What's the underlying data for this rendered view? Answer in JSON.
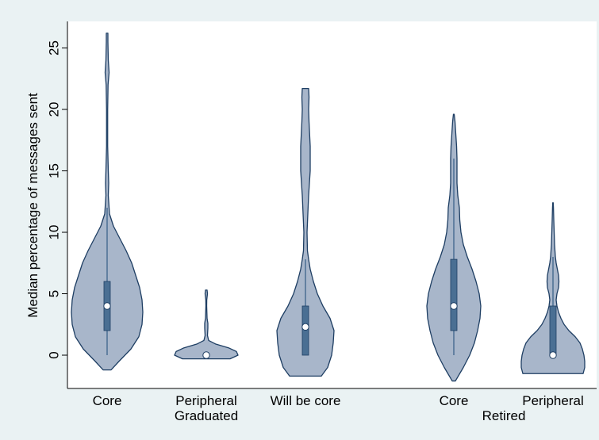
{
  "chart_data": {
    "type": "violin",
    "ylabel": "Median percentage of messages sent",
    "ylim": [
      -2.8,
      27
    ],
    "yticks": [
      0,
      5,
      10,
      15,
      20,
      25
    ],
    "groups": [
      {
        "label": "Graduated",
        "categories": [
          "Core",
          "Peripheral",
          "Will be core"
        ]
      },
      {
        "label": "Retired",
        "categories": [
          "Core",
          "Peripheral"
        ]
      }
    ],
    "colors": {
      "plot_background": "#ffffff",
      "figure_background": "#eaf2f3",
      "violin_fill": "#a8b6ca",
      "violin_stroke": "#1e3e63",
      "box_fill": "#4a6f93"
    },
    "violins": [
      {
        "category": "Core",
        "group": "Graduated",
        "median": 4,
        "q1": 2,
        "q3": 6,
        "whisker_low": 0,
        "whisker_high": 12,
        "min": -1.2,
        "max": 26.2,
        "density": [
          [
            -1.2,
            5
          ],
          [
            -0.5,
            15
          ],
          [
            0.5,
            30
          ],
          [
            1.5,
            40
          ],
          [
            2.5,
            44
          ],
          [
            3.5,
            45
          ],
          [
            4.5,
            44
          ],
          [
            5.5,
            41
          ],
          [
            6.5,
            36
          ],
          [
            7.5,
            31
          ],
          [
            8.5,
            24
          ],
          [
            9.5,
            16
          ],
          [
            10.5,
            8
          ],
          [
            11.5,
            3
          ],
          [
            13,
            1.5
          ],
          [
            14,
            2
          ],
          [
            15,
            1.5
          ],
          [
            17,
            0.7
          ],
          [
            20,
            0.7
          ],
          [
            22,
            1.2
          ],
          [
            23,
            2.5
          ],
          [
            24,
            1.5
          ],
          [
            25.5,
            1
          ],
          [
            26.2,
            1
          ]
        ]
      },
      {
        "category": "Peripheral",
        "group": "Graduated",
        "median": 0,
        "q1": 0,
        "q3": 0,
        "whisker_low": 0,
        "whisker_high": 0,
        "min": -0.3,
        "max": 5.3,
        "density": [
          [
            -0.3,
            30
          ],
          [
            0,
            40
          ],
          [
            0.3,
            38
          ],
          [
            0.6,
            28
          ],
          [
            0.9,
            12
          ],
          [
            1.2,
            3
          ],
          [
            1.6,
            1.5
          ],
          [
            2.2,
            2
          ],
          [
            2.6,
            2
          ],
          [
            3,
            1
          ],
          [
            4,
            0.5
          ],
          [
            4.5,
            0.6
          ],
          [
            5,
            1.5
          ],
          [
            5.3,
            1
          ]
        ]
      },
      {
        "category": "Will be core",
        "group": "Graduated",
        "median": 2.3,
        "q1": 0,
        "q3": 4,
        "whisker_low": 0,
        "whisker_high": 7.8,
        "min": -1.7,
        "max": 21.7,
        "density": [
          [
            -1.7,
            20
          ],
          [
            -1,
            28
          ],
          [
            0,
            33
          ],
          [
            1,
            35
          ],
          [
            2,
            36
          ],
          [
            3,
            31
          ],
          [
            4,
            22
          ],
          [
            5,
            15
          ],
          [
            6,
            10
          ],
          [
            7,
            6
          ],
          [
            7.8,
            4
          ],
          [
            8.5,
            2.5
          ],
          [
            10,
            2
          ],
          [
            11.5,
            3
          ],
          [
            13,
            4
          ],
          [
            15,
            6
          ],
          [
            17,
            6
          ],
          [
            19,
            4.5
          ],
          [
            20,
            4
          ],
          [
            21,
            4.5
          ],
          [
            21.7,
            4
          ]
        ]
      },
      {
        "category": "Core",
        "group": "Retired",
        "median": 4,
        "q1": 2,
        "q3": 7.8,
        "whisker_low": 0,
        "whisker_high": 16,
        "min": -2.1,
        "max": 19.6,
        "density": [
          [
            -2.1,
            2
          ],
          [
            -1,
            12
          ],
          [
            0,
            20
          ],
          [
            1,
            26
          ],
          [
            2,
            30
          ],
          [
            3,
            33
          ],
          [
            4,
            34
          ],
          [
            5,
            32
          ],
          [
            6,
            28
          ],
          [
            7,
            23
          ],
          [
            8,
            17
          ],
          [
            9,
            12
          ],
          [
            10,
            9
          ],
          [
            11,
            7.5
          ],
          [
            12,
            7
          ],
          [
            13,
            5
          ],
          [
            14,
            4
          ],
          [
            15,
            4
          ],
          [
            16,
            4
          ],
          [
            17,
            3.5
          ],
          [
            18,
            2.5
          ],
          [
            19,
            1.5
          ],
          [
            19.6,
            0.5
          ]
        ]
      },
      {
        "category": "Peripheral",
        "group": "Retired",
        "median": 0,
        "q1": 0,
        "q3": 4,
        "whisker_low": 0,
        "whisker_high": 8,
        "min": -1.5,
        "max": 12.4,
        "density": [
          [
            -1.5,
            38
          ],
          [
            -1,
            40
          ],
          [
            -0.5,
            40
          ],
          [
            0,
            39
          ],
          [
            0.5,
            37
          ],
          [
            1,
            34
          ],
          [
            1.5,
            28
          ],
          [
            2,
            20
          ],
          [
            2.5,
            14
          ],
          [
            3,
            10
          ],
          [
            3.5,
            7
          ],
          [
            4,
            5
          ],
          [
            4.5,
            4
          ],
          [
            5,
            5
          ],
          [
            5.5,
            7
          ],
          [
            6,
            7.5
          ],
          [
            6.5,
            7
          ],
          [
            7,
            5.5
          ],
          [
            7.5,
            4
          ],
          [
            8,
            3
          ],
          [
            9,
            2
          ],
          [
            10,
            1.5
          ],
          [
            11,
            1
          ],
          [
            12,
            0.6
          ],
          [
            12.4,
            0.3
          ]
        ]
      }
    ]
  }
}
